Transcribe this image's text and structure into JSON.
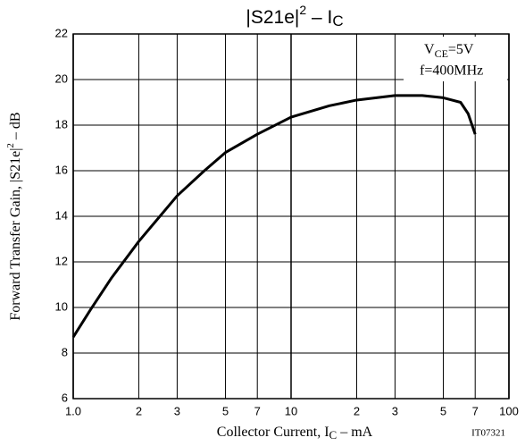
{
  "chart_data": {
    "type": "line",
    "title_parts": [
      "|S21e|",
      "2",
      " – I",
      "C"
    ],
    "y_label_parts": [
      "Forward Transfer Gain, |S21e|",
      "2",
      " – dB"
    ],
    "x_label_parts": [
      "Collector Current, I",
      "C",
      " – mA"
    ],
    "annotation": {
      "vce_parts": [
        "V",
        "CE",
        "=5V"
      ],
      "freq": "f=400MHz"
    },
    "figure_code": "IT07321",
    "log_x": true,
    "grid": true,
    "xlim": [
      1,
      100
    ],
    "ylim": [
      6,
      22
    ],
    "xticks": [
      {
        "value": 1,
        "label": "1.0"
      },
      2,
      3,
      5,
      7,
      10,
      {
        "value": 20,
        "label": "2"
      },
      {
        "value": 30,
        "label": "3"
      },
      {
        "value": 50,
        "label": "5"
      },
      {
        "value": 70,
        "label": "7"
      },
      100
    ],
    "yticks": [
      6,
      8,
      10,
      12,
      14,
      16,
      18,
      20,
      22
    ],
    "color": "#000000",
    "x": [
      1,
      1.2,
      1.5,
      2,
      3,
      4,
      5,
      7,
      10,
      15,
      20,
      30,
      40,
      50,
      60,
      65,
      70
    ],
    "values": [
      8.7,
      9.9,
      11.3,
      12.9,
      14.9,
      16.0,
      16.8,
      17.6,
      18.35,
      18.85,
      19.1,
      19.3,
      19.3,
      19.2,
      19.0,
      18.5,
      17.6
    ]
  }
}
